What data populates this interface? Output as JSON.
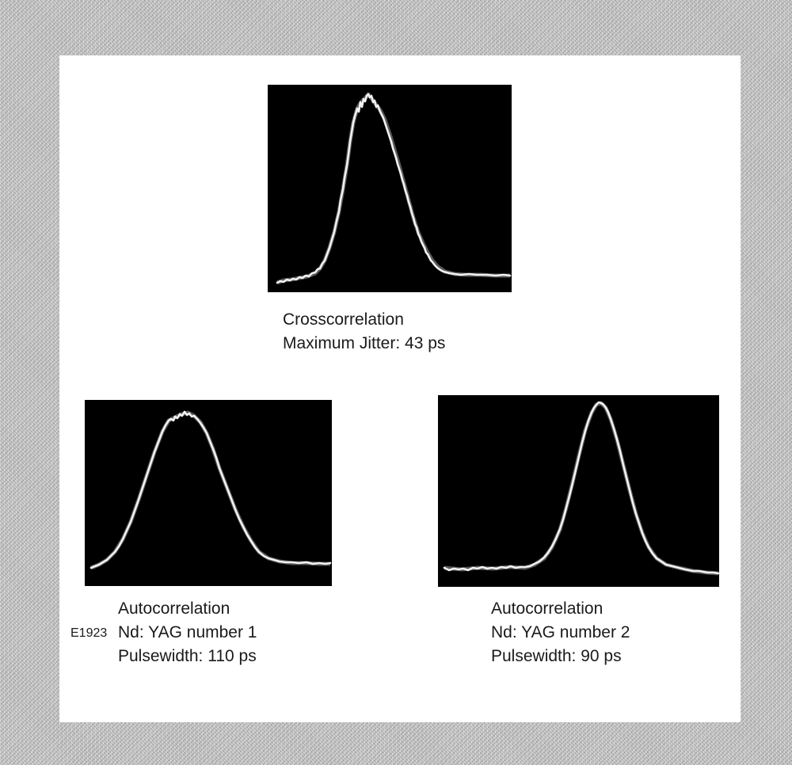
{
  "figure_id": "E1923",
  "crosscorrelation": {
    "title": "Crosscorrelation",
    "detail": "Maximum Jitter:  43 ps"
  },
  "autocorrelation_1": {
    "title": "Autocorrelation",
    "laser": "Nd:  YAG number 1",
    "pulsewidth": "Pulsewidth:  110 ps"
  },
  "autocorrelation_2": {
    "title": "Autocorrelation",
    "laser": "Nd:  YAG number 2",
    "pulsewidth": "Pulsewidth:  90 ps"
  },
  "colors": {
    "screen": "#000000",
    "trace": "#f2f2f2",
    "paper": "#ffffff"
  }
}
